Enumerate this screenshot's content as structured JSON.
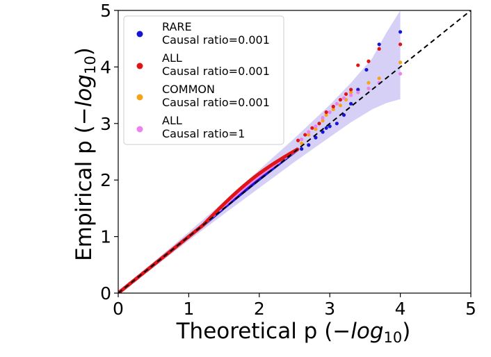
{
  "chart_data": {
    "type": "scatter",
    "title": "",
    "xlabel_main": "Theoretical p (",
    "xlabel_math": "−log",
    "xlabel_sub": "10",
    "xlabel_close": ")",
    "ylabel_main": "Empirical p (",
    "ylabel_math": "−log",
    "ylabel_sub": "10",
    "ylabel_close": ")",
    "xlim": [
      0,
      5
    ],
    "ylim": [
      0,
      5
    ],
    "xticks": [
      0,
      1,
      2,
      3,
      4,
      5
    ],
    "yticks": [
      0,
      1,
      2,
      3,
      4,
      5
    ],
    "tick_labels_x": [
      "0",
      "1",
      "2",
      "3",
      "4",
      "5"
    ],
    "tick_labels_y": [
      "0",
      "1",
      "2",
      "3",
      "4",
      "5"
    ],
    "reference_line": "y = x (dashed)",
    "confidence_band": {
      "color": "#d6d0f7",
      "x": [
        0,
        0.5,
        1,
        1.5,
        2,
        2.5,
        3,
        3.3,
        3.6,
        3.8,
        4.0
      ],
      "lower": [
        0,
        0.45,
        0.93,
        1.4,
        1.86,
        2.32,
        2.76,
        3.02,
        3.25,
        3.36,
        3.43
      ],
      "upper": [
        0.02,
        0.55,
        1.08,
        1.62,
        2.18,
        2.74,
        3.33,
        3.72,
        4.15,
        4.6,
        5.0
      ]
    },
    "legend_position": "top-left",
    "series": [
      {
        "name": "RARE",
        "label_line1": "RARE",
        "label_line2": "Causal ratio=0.001",
        "color": "#1515d8",
        "offset": 0.02,
        "tail": [
          [
            2.6,
            2.55
          ],
          [
            2.7,
            2.62
          ],
          [
            2.8,
            2.75
          ],
          [
            2.9,
            2.85
          ],
          [
            2.95,
            2.92
          ],
          [
            3.0,
            2.95
          ],
          [
            3.1,
            3.0
          ],
          [
            3.2,
            3.15
          ],
          [
            3.3,
            3.35
          ],
          [
            3.4,
            3.6
          ],
          [
            3.52,
            3.95
          ],
          [
            3.7,
            4.4
          ],
          [
            4.0,
            4.62
          ]
        ]
      },
      {
        "name": "ALL",
        "label_line1": "ALL",
        "label_line2": "Causal ratio=0.001",
        "color": "#e01414",
        "offset": 0.12,
        "tail": [
          [
            2.55,
            2.7
          ],
          [
            2.65,
            2.8
          ],
          [
            2.75,
            2.92
          ],
          [
            2.85,
            3.0
          ],
          [
            2.95,
            3.2
          ],
          [
            3.05,
            3.3
          ],
          [
            3.15,
            3.42
          ],
          [
            3.23,
            3.52
          ],
          [
            3.3,
            3.6
          ],
          [
            3.4,
            4.03
          ],
          [
            3.55,
            4.1
          ],
          [
            3.7,
            4.32
          ],
          [
            4.0,
            4.4
          ]
        ]
      },
      {
        "name": "COMMON",
        "label_line1": "COMMON",
        "label_line2": "Causal ratio=0.001",
        "color": "#f7a318",
        "offset": 0.04,
        "tail": [
          [
            2.6,
            2.65
          ],
          [
            2.7,
            2.8
          ],
          [
            2.8,
            2.9
          ],
          [
            2.9,
            3.05
          ],
          [
            2.95,
            3.15
          ],
          [
            3.05,
            3.25
          ],
          [
            3.15,
            3.32
          ],
          [
            3.23,
            3.42
          ],
          [
            3.3,
            3.55
          ],
          [
            3.55,
            3.72
          ],
          [
            3.7,
            3.8
          ],
          [
            4.0,
            4.08
          ]
        ]
      },
      {
        "name": "ALL",
        "label_line1": "ALL",
        "label_line2": "Causal ratio=1",
        "color": "#ec82ec",
        "offset": 0.08,
        "tail": [
          [
            2.6,
            2.72
          ],
          [
            2.7,
            2.85
          ],
          [
            2.8,
            2.95
          ],
          [
            2.9,
            3.1
          ],
          [
            3.0,
            3.2
          ],
          [
            3.1,
            3.35
          ],
          [
            3.2,
            3.45
          ],
          [
            3.3,
            3.5
          ],
          [
            3.4,
            3.55
          ],
          [
            3.55,
            3.62
          ],
          [
            3.7,
            3.72
          ],
          [
            4.0,
            3.88
          ]
        ]
      }
    ]
  }
}
